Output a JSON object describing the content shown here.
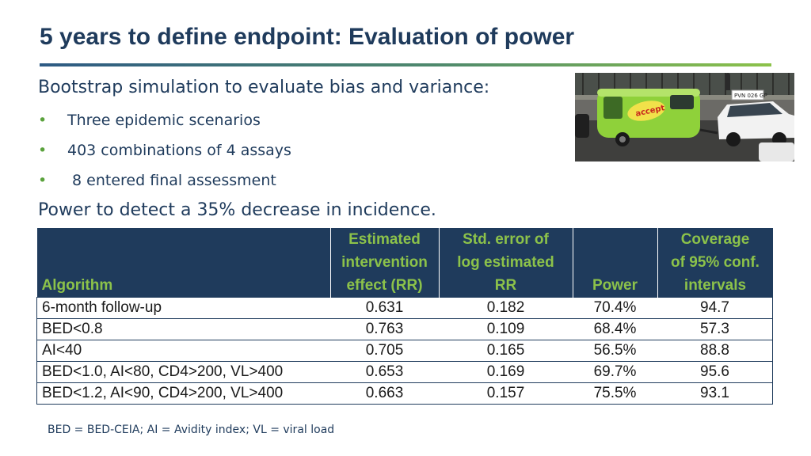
{
  "slide": {
    "title": "5 years to define endpoint: Evaluation of power",
    "intro": "Bootstrap simulation to evaluate bias and variance:",
    "bullets": [
      "Three epidemic scenarios",
      "403 combinations of 4 assays",
      " 8 entered final assessment"
    ],
    "power_line": "Power to detect a 35% decrease in incidence.",
    "footnote": "BED = BED-CEIA; AI = Avidity index; VL = viral load"
  },
  "photo": {
    "van_text": "accept",
    "plate_text": "PVN 026 GP"
  },
  "table": {
    "headers": [
      [
        "Algorithm"
      ],
      [
        "Estimated",
        "intervention",
        "effect (RR)"
      ],
      [
        "Std. error of",
        "log estimated",
        "RR"
      ],
      [
        "Power"
      ],
      [
        "Coverage",
        "of 95% conf.",
        "intervals"
      ]
    ],
    "rows": [
      {
        "algorithm": "6-month follow-up",
        "rr": "0.631",
        "se": "0.182",
        "power": "70.4%",
        "coverage": "94.7"
      },
      {
        "algorithm": "BED<0.8",
        "rr": "0.763",
        "se": "0.109",
        "power": "68.4%",
        "coverage": "57.3"
      },
      {
        "algorithm": "AI<40",
        "rr": "0.705",
        "se": "0.165",
        "power": "56.5%",
        "coverage": "88.8"
      },
      {
        "algorithm": "BED<1.0, AI<80, CD4>200, VL>400",
        "rr": "0.653",
        "se": "0.169",
        "power": "69.7%",
        "coverage": "95.6"
      },
      {
        "algorithm": "BED<1.2, AI<90, CD4>200, VL>400",
        "rr": "0.663",
        "se": "0.157",
        "power": "75.5%",
        "coverage": "93.1"
      }
    ]
  },
  "colors": {
    "title": "#1f3b5c",
    "header_bg": "#1f3b5c",
    "header_text": "#8cc24a",
    "bullet": "#5aa23c"
  }
}
